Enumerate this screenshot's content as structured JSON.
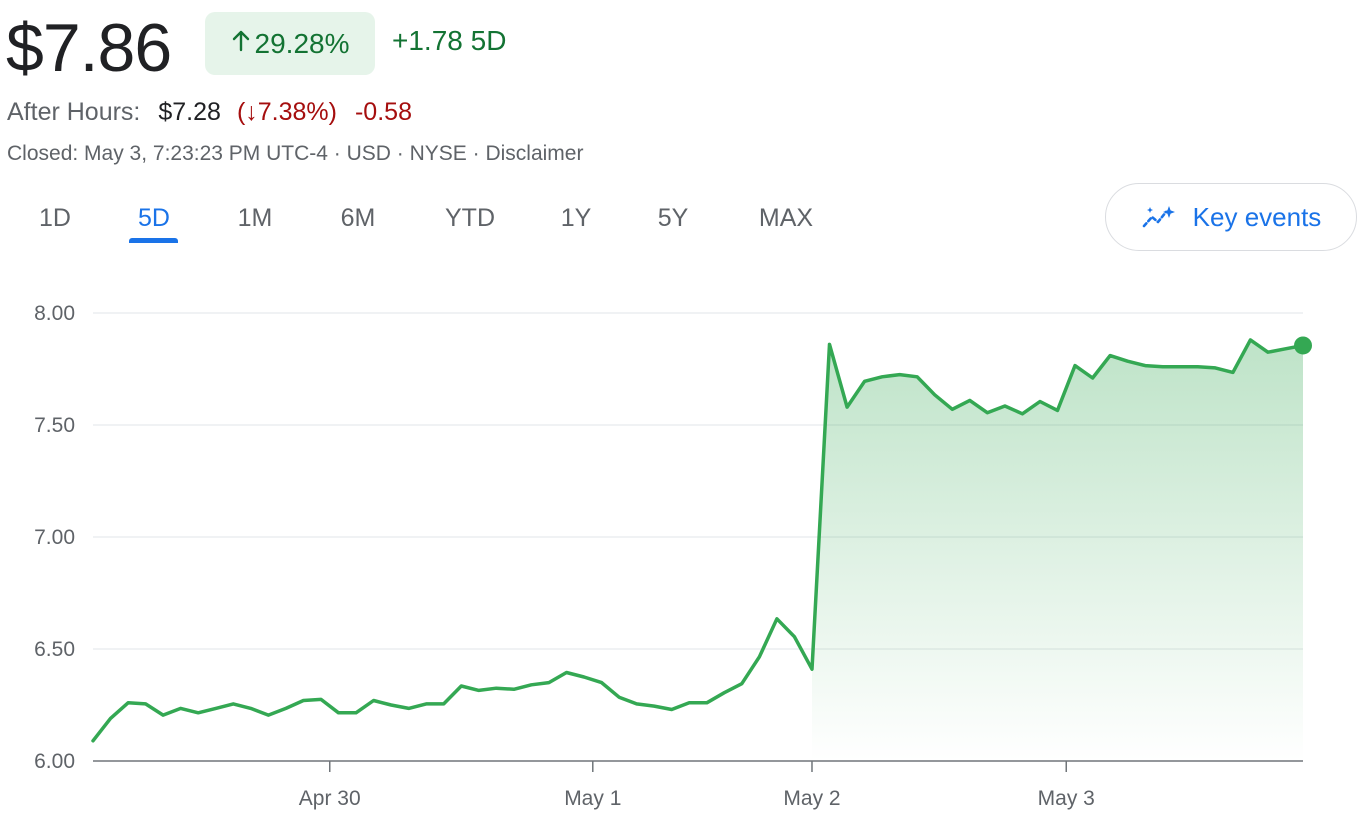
{
  "quote": {
    "price": "$7.86",
    "change_pct": "29.28%",
    "change_abs": "+1.78 5D",
    "after_hours_label": "After Hours:",
    "after_hours_price": "$7.28",
    "after_hours_pct": "(↓7.38%)",
    "after_hours_abs": "-0.58",
    "meta": "Closed: May 3, 7:23:23 PM UTC-4 · USD · NYSE · Disclaimer"
  },
  "tabs": [
    {
      "label": "1D"
    },
    {
      "label": "5D",
      "active": true
    },
    {
      "label": "1M"
    },
    {
      "label": "6M"
    },
    {
      "label": "YTD"
    },
    {
      "label": "1Y"
    },
    {
      "label": "5Y"
    },
    {
      "label": "MAX"
    }
  ],
  "key_events": {
    "label": "Key events",
    "icon": "sparkle-trend-icon"
  },
  "colors": {
    "up": "#137333",
    "down": "#a50e0e",
    "line": "#34a853",
    "accent": "#1a73e8"
  },
  "chart_data": {
    "type": "area",
    "ylim": [
      6.0,
      8.0
    ],
    "yticks": [
      "8.00",
      "7.50",
      "7.00",
      "6.50",
      "6.00"
    ],
    "ytick_values": [
      8.0,
      7.5,
      7.0,
      6.5,
      6.0
    ],
    "xticks": [
      {
        "label": "Apr 30",
        "x": 13.5
      },
      {
        "label": "May 1",
        "x": 28.5
      },
      {
        "label": "May 2",
        "x": 41
      },
      {
        "label": "May 3",
        "x": 55.5
      }
    ],
    "x_count": 70,
    "series": [
      {
        "values": [
          6.09,
          6.19,
          6.26,
          6.255,
          6.205,
          6.235,
          6.215,
          6.235,
          6.255,
          6.235,
          6.205,
          6.235,
          6.27,
          6.275,
          6.215,
          6.215,
          6.27,
          6.25,
          6.235,
          6.255,
          6.255,
          6.335,
          6.315,
          6.325,
          6.32,
          6.34,
          6.35,
          6.395,
          6.375,
          6.35,
          6.285,
          6.255,
          6.245,
          6.23,
          6.26,
          6.26,
          6.305,
          6.345,
          6.465,
          6.635,
          6.555,
          6.41,
          7.86,
          7.58,
          7.695,
          7.715,
          7.725,
          7.715,
          7.635,
          7.57,
          7.61,
          7.555,
          7.585,
          7.55,
          7.605,
          7.565,
          7.765,
          7.71,
          7.81,
          7.785,
          7.765,
          7.76,
          7.76,
          7.76,
          7.755,
          7.735,
          7.88,
          7.825,
          7.84,
          7.855
        ]
      }
    ]
  }
}
